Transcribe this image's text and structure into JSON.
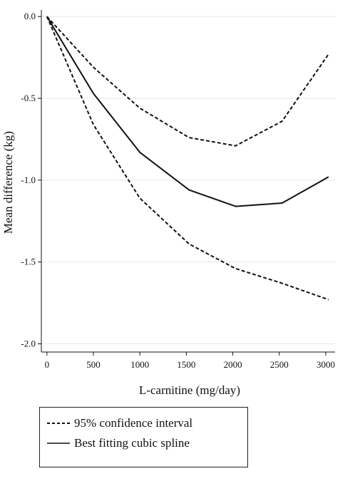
{
  "chart_data": {
    "type": "line",
    "title": "",
    "xlabel": "L-carnitine (mg/day)",
    "ylabel": "Mean difference (kg)",
    "xlim": [
      -60,
      3100
    ],
    "ylim": [
      -2.05,
      0.04
    ],
    "xticks": [
      0,
      500,
      1000,
      1500,
      2000,
      2500,
      3000
    ],
    "yticks": [
      0.0,
      -0.5,
      -1.0,
      -1.5,
      -2.0
    ],
    "ytick_labels": [
      "0.0",
      "-0.5",
      "-1.0",
      "-1.5",
      "-2.0"
    ],
    "grid": "horizontal",
    "legend_position": "bottom-left",
    "series": [
      {
        "name": "Best fitting cubic spline",
        "style": "solid",
        "x": [
          0,
          500,
          1000,
          1530,
          2030,
          2530,
          3030
        ],
        "y": [
          0.0,
          -0.47,
          -0.83,
          -1.06,
          -1.16,
          -1.14,
          -0.98
        ]
      },
      {
        "name": "95% confidence interval",
        "style": "dashed",
        "x": [
          0,
          500,
          1000,
          1530,
          2030,
          2530,
          3030
        ],
        "y": [
          0.0,
          -0.31,
          -0.56,
          -0.74,
          -0.79,
          -0.64,
          -0.23
        ]
      },
      {
        "name": "95% confidence interval",
        "style": "dashed",
        "x": [
          0,
          500,
          1000,
          1530,
          2030,
          2530,
          3030
        ],
        "y": [
          0.0,
          -0.66,
          -1.11,
          -1.39,
          -1.54,
          -1.63,
          -1.73
        ]
      }
    ]
  },
  "legend": {
    "items": [
      {
        "label": "95% confidence interval",
        "style": "dashed"
      },
      {
        "label": "Best fitting cubic spline",
        "style": "solid"
      }
    ]
  }
}
